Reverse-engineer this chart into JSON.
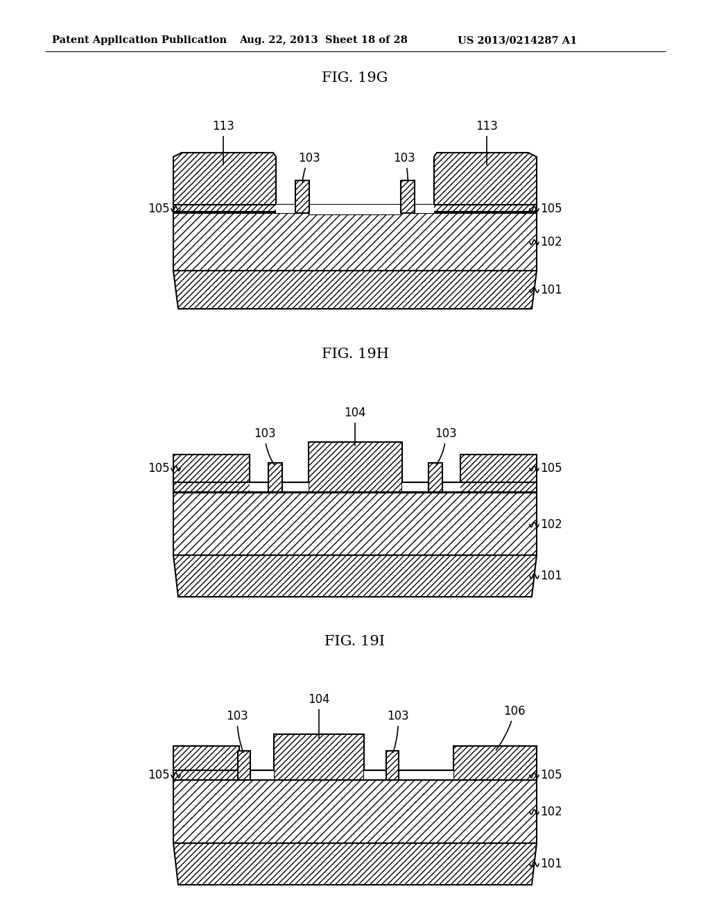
{
  "header_left": "Patent Application Publication",
  "header_mid": "Aug. 22, 2013  Sheet 18 of 28",
  "header_right": "US 2013/0214287 A1",
  "bg_color": "#ffffff"
}
